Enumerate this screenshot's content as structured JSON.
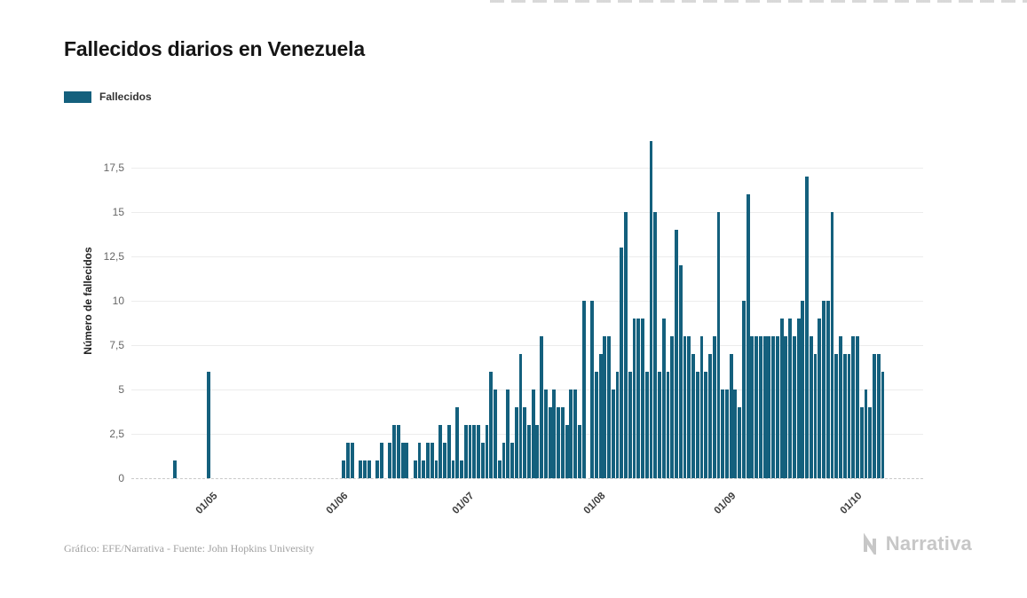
{
  "page": {
    "title": "Fallecidos diarios en Venezuela",
    "legend": {
      "label": "Fallecidos",
      "color": "#14607d"
    },
    "footer": {
      "credit": "Gráfico: EFE/Narrativa - Fuente: John Hopkins University",
      "brand": "Narrativa"
    }
  },
  "chart_data": {
    "type": "bar",
    "title": "Fallecidos diarios en Venezuela",
    "xlabel": "",
    "ylabel": "Número de fallecidos",
    "series_name": "Fallecidos",
    "bar_color": "#14607d",
    "grid": true,
    "legend_position": "top-left",
    "ylim": [
      0,
      20
    ],
    "y_ticks": [
      {
        "value": 0,
        "label": "0"
      },
      {
        "value": 2.5,
        "label": "2,5"
      },
      {
        "value": 5,
        "label": "5"
      },
      {
        "value": 7.5,
        "label": "7,5"
      },
      {
        "value": 10,
        "label": "10"
      },
      {
        "value": 12.5,
        "label": "12,5"
      },
      {
        "value": 15,
        "label": "15"
      },
      {
        "value": 17.5,
        "label": "17,5"
      }
    ],
    "x_ticks": [
      "01/05",
      "01/06",
      "01/07",
      "01/08",
      "01/09",
      "01/10"
    ],
    "x": [
      "14/04",
      "15/04",
      "16/04",
      "17/04",
      "18/04",
      "19/04",
      "20/04",
      "21/04",
      "22/04",
      "23/04",
      "24/04",
      "25/04",
      "26/04",
      "27/04",
      "28/04",
      "29/04",
      "30/04",
      "01/05",
      "02/05",
      "03/05",
      "04/05",
      "05/05",
      "06/05",
      "07/05",
      "08/05",
      "09/05",
      "10/05",
      "11/05",
      "12/05",
      "13/05",
      "14/05",
      "15/05",
      "16/05",
      "17/05",
      "18/05",
      "19/05",
      "20/05",
      "21/05",
      "22/05",
      "23/05",
      "24/05",
      "25/05",
      "26/05",
      "27/05",
      "28/05",
      "29/05",
      "30/05",
      "31/05",
      "01/06",
      "02/06",
      "03/06",
      "04/06",
      "05/06",
      "06/06",
      "07/06",
      "08/06",
      "09/06",
      "10/06",
      "11/06",
      "12/06",
      "13/06",
      "14/06",
      "15/06",
      "16/06",
      "17/06",
      "18/06",
      "19/06",
      "20/06",
      "21/06",
      "22/06",
      "23/06",
      "24/06",
      "25/06",
      "26/06",
      "27/06",
      "28/06",
      "29/06",
      "30/06",
      "01/07",
      "02/07",
      "03/07",
      "04/07",
      "05/07",
      "06/07",
      "07/07",
      "08/07",
      "09/07",
      "10/07",
      "11/07",
      "12/07",
      "13/07",
      "14/07",
      "15/07",
      "16/07",
      "17/07",
      "18/07",
      "19/07",
      "20/07",
      "21/07",
      "22/07",
      "23/07",
      "24/07",
      "25/07",
      "26/07",
      "27/07",
      "28/07",
      "29/07",
      "30/07",
      "31/07",
      "01/08",
      "02/08",
      "03/08",
      "04/08",
      "05/08",
      "06/08",
      "07/08",
      "08/08",
      "09/08",
      "10/08",
      "11/08",
      "12/08",
      "13/08",
      "14/08",
      "15/08",
      "16/08",
      "17/08",
      "18/08",
      "19/08",
      "20/08",
      "21/08",
      "22/08",
      "23/08",
      "24/08",
      "25/08",
      "26/08",
      "27/08",
      "28/08",
      "29/08",
      "30/08",
      "31/08",
      "01/09",
      "02/09",
      "03/09",
      "04/09",
      "05/09",
      "06/09",
      "07/09",
      "08/09",
      "09/09",
      "10/09",
      "11/09",
      "12/09",
      "13/09",
      "14/09",
      "15/09",
      "16/09",
      "17/09",
      "18/09",
      "19/09",
      "20/09",
      "21/09",
      "22/09",
      "23/09",
      "24/09",
      "25/09",
      "26/09",
      "27/09",
      "28/09",
      "29/09",
      "30/09",
      "01/10",
      "02/10",
      "03/10",
      "04/10",
      "05/10",
      "06/10",
      "07/10",
      "08/10",
      "09/10",
      "10/10",
      "11/10",
      "12/10",
      "13/10",
      "14/10",
      "15/10",
      "16/10",
      "17/10",
      "18/10"
    ],
    "values": [
      0,
      0,
      0,
      0,
      0,
      0,
      0,
      0,
      0,
      0,
      1,
      0,
      0,
      0,
      0,
      0,
      0,
      0,
      6,
      0,
      0,
      0,
      0,
      0,
      0,
      0,
      0,
      0,
      0,
      0,
      0,
      0,
      0,
      0,
      0,
      0,
      0,
      0,
      0,
      0,
      0,
      0,
      0,
      0,
      0,
      0,
      0,
      0,
      0,
      0,
      1,
      2,
      2,
      0,
      1,
      1,
      1,
      0,
      1,
      2,
      0,
      2,
      3,
      3,
      2,
      2,
      0,
      1,
      2,
      1,
      2,
      2,
      1,
      3,
      2,
      3,
      1,
      4,
      1,
      3,
      3,
      3,
      3,
      2,
      3,
      6,
      5,
      1,
      2,
      5,
      2,
      4,
      7,
      4,
      3,
      5,
      3,
      8,
      5,
      4,
      5,
      4,
      4,
      3,
      5,
      5,
      3,
      10,
      0,
      10,
      6,
      7,
      8,
      8,
      5,
      6,
      13,
      15,
      6,
      9,
      9,
      9,
      6,
      19,
      15,
      6,
      9,
      6,
      8,
      14,
      12,
      8,
      8,
      7,
      6,
      8,
      6,
      7,
      8,
      15,
      5,
      5,
      7,
      5,
      4,
      10,
      16,
      8,
      8,
      8,
      8,
      8,
      8,
      8,
      9,
      8,
      9,
      8,
      9,
      10,
      17,
      8,
      7,
      9,
      10,
      10,
      15,
      7,
      8,
      7,
      7,
      8,
      8,
      4,
      5,
      4,
      7,
      7,
      6,
      0,
      0,
      0,
      0,
      0,
      0,
      0,
      0,
      0
    ]
  }
}
